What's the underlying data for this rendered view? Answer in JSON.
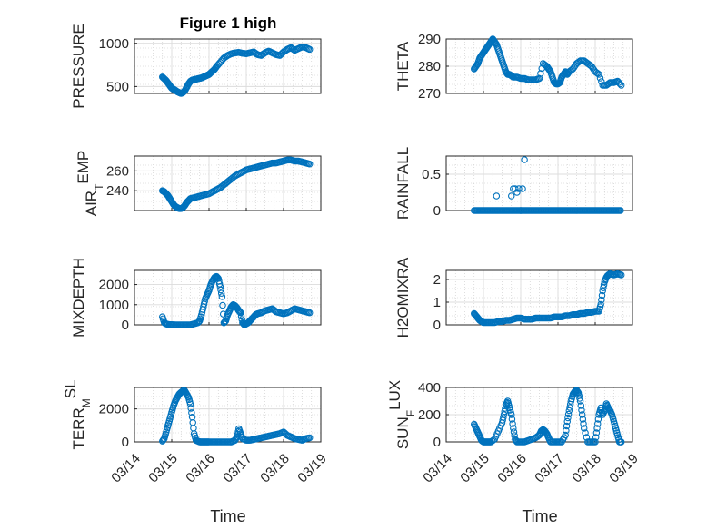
{
  "figure": {
    "title": "Figure 1 high",
    "marker_color": "#0072bd",
    "axis_color": "#262626",
    "grid_color": "#c8c8c8"
  },
  "chart_data": [
    {
      "type": "scatter",
      "id": "pressure",
      "ylabel": "PRESSURE",
      "ylabel_sub": "",
      "ylim": [
        420,
        1050
      ],
      "yticks": [
        500,
        1000
      ],
      "xlim": [
        0,
        5
      ],
      "xticks": [
        0,
        1,
        2,
        3,
        4,
        5
      ],
      "grid": true,
      "points_x": [
        0.75,
        0.8,
        0.85,
        0.9,
        0.95,
        1.0,
        1.05,
        1.1,
        1.15,
        1.2,
        1.25,
        1.3,
        1.35,
        1.4,
        1.45,
        1.5,
        1.55,
        1.6,
        1.65,
        1.7,
        1.75,
        1.8,
        1.85,
        1.9,
        1.95,
        2.0,
        2.05,
        2.1,
        2.15,
        2.2,
        2.3,
        2.4,
        2.5,
        2.6,
        2.7,
        2.8,
        2.9,
        3.0,
        3.1,
        3.2,
        3.3,
        3.4,
        3.5,
        3.6,
        3.7,
        3.8,
        3.9,
        4.0,
        4.1,
        4.2,
        4.3,
        4.4,
        4.5,
        4.6,
        4.7
      ],
      "points_y": [
        610,
        590,
        570,
        540,
        510,
        480,
        470,
        455,
        440,
        430,
        420,
        430,
        450,
        490,
        530,
        560,
        575,
        580,
        585,
        590,
        595,
        600,
        610,
        620,
        630,
        640,
        660,
        680,
        700,
        730,
        780,
        830,
        860,
        880,
        890,
        895,
        885,
        880,
        890,
        900,
        870,
        860,
        890,
        910,
        890,
        870,
        860,
        900,
        930,
        950,
        920,
        940,
        960,
        950,
        930
      ]
    },
    {
      "type": "scatter",
      "id": "theta",
      "ylabel": "THETA",
      "ylabel_sub": "",
      "ylim": [
        270,
        290
      ],
      "yticks": [
        270,
        280,
        290
      ],
      "xlim": [
        0,
        5
      ],
      "xticks": [
        0,
        1,
        2,
        3,
        4,
        5
      ],
      "grid": true,
      "points_x": [
        0.75,
        0.8,
        0.85,
        0.9,
        0.95,
        1.0,
        1.05,
        1.1,
        1.15,
        1.2,
        1.25,
        1.3,
        1.35,
        1.4,
        1.45,
        1.5,
        1.55,
        1.6,
        1.65,
        1.7,
        1.75,
        1.8,
        1.9,
        2.0,
        2.1,
        2.2,
        2.3,
        2.4,
        2.5,
        2.6,
        2.7,
        2.75,
        2.8,
        2.85,
        2.9,
        2.95,
        3.0,
        3.05,
        3.1,
        3.15,
        3.2,
        3.25,
        3.3,
        3.4,
        3.5,
        3.6,
        3.7,
        3.8,
        3.9,
        4.0,
        4.1,
        4.2,
        4.3,
        4.4,
        4.5,
        4.6,
        4.7
      ],
      "points_y": [
        279,
        280,
        281,
        283,
        284,
        285,
        286,
        287,
        288,
        289,
        290,
        289,
        288,
        286,
        284,
        282,
        280,
        278,
        277,
        277,
        276.5,
        276,
        276,
        275.5,
        275.5,
        275,
        275,
        275,
        275.5,
        281,
        280,
        279,
        278,
        276,
        274,
        273.5,
        273.5,
        274,
        276,
        277,
        278,
        277,
        278,
        279,
        281,
        282,
        282,
        281,
        280,
        278,
        277,
        273,
        273,
        274,
        274,
        274.5,
        273
      ]
    },
    {
      "type": "scatter",
      "id": "air_temp",
      "ylabel": "AIR",
      "ylabel_sub": "T",
      "ylabel_tail": "EMP",
      "ylim": [
        220,
        275
      ],
      "yticks": [
        240,
        260
      ],
      "xlim": [
        0,
        5
      ],
      "xticks": [
        0,
        1,
        2,
        3,
        4,
        5
      ],
      "grid": true,
      "points_x": [
        0.75,
        0.8,
        0.85,
        0.9,
        0.95,
        1.0,
        1.05,
        1.1,
        1.15,
        1.2,
        1.25,
        1.3,
        1.35,
        1.4,
        1.45,
        1.5,
        1.6,
        1.7,
        1.8,
        1.9,
        2.0,
        2.1,
        2.2,
        2.3,
        2.4,
        2.5,
        2.6,
        2.7,
        2.8,
        2.9,
        3.0,
        3.1,
        3.2,
        3.3,
        3.4,
        3.5,
        3.6,
        3.7,
        3.8,
        3.9,
        4.0,
        4.1,
        4.2,
        4.3,
        4.4,
        4.5,
        4.6,
        4.7
      ],
      "points_y": [
        240,
        239,
        237,
        235,
        232,
        229,
        226,
        224,
        223,
        222,
        222,
        223,
        225,
        228,
        230,
        232,
        233,
        234,
        235,
        236,
        237,
        239,
        241,
        243,
        246,
        249,
        252,
        255,
        257,
        259,
        261,
        262,
        263,
        264,
        265,
        266,
        267,
        268,
        268,
        269,
        270,
        271,
        271,
        270,
        270,
        269,
        268,
        267
      ]
    },
    {
      "type": "scatter",
      "id": "rainfall",
      "ylabel": "RAINFALL",
      "ylabel_sub": "",
      "ylim": [
        0,
        0.75
      ],
      "yticks": [
        0,
        0.5
      ],
      "xlim": [
        0,
        5
      ],
      "xticks": [
        0,
        1,
        2,
        3,
        4,
        5
      ],
      "grid": true,
      "points_x": [
        1.35,
        1.75,
        1.8,
        1.85,
        1.9,
        1.95,
        2.05,
        2.1,
        2.0
      ],
      "points_y": [
        0.2,
        0.2,
        0.3,
        0.3,
        0.25,
        0.3,
        0.3,
        0.7,
        0.0
      ],
      "baseline_from": 0.75,
      "baseline_to": 4.7,
      "baseline_value": 0
    },
    {
      "type": "scatter",
      "id": "mixdepth",
      "ylabel": "MIXDEPTH",
      "ylabel_sub": "",
      "ylim": [
        0,
        2700
      ],
      "yticks": [
        0,
        1000,
        2000
      ],
      "xlim": [
        0,
        5
      ],
      "xticks": [
        0,
        1,
        2,
        3,
        4,
        5
      ],
      "grid": true,
      "points_x": [
        0.75,
        0.8,
        0.85,
        0.9,
        1.0,
        1.1,
        1.2,
        1.3,
        1.4,
        1.5,
        1.6,
        1.7,
        1.75,
        1.8,
        1.85,
        1.9,
        1.95,
        2.0,
        2.05,
        2.1,
        2.15,
        2.2,
        2.25,
        2.3,
        2.35,
        2.4,
        2.45,
        2.5,
        2.55,
        2.6,
        2.65,
        2.7,
        2.75,
        2.8,
        2.85,
        2.9,
        2.95,
        3.0,
        3.05,
        3.1,
        3.15,
        3.2,
        3.25,
        3.3,
        3.4,
        3.5,
        3.6,
        3.7,
        3.8,
        3.9,
        4.0,
        4.1,
        4.2,
        4.3,
        4.4,
        4.5,
        4.6,
        4.7
      ],
      "points_y": [
        400,
        100,
        50,
        20,
        10,
        0,
        0,
        0,
        0,
        0,
        50,
        100,
        200,
        500,
        900,
        1300,
        1500,
        1700,
        2000,
        2200,
        2350,
        2400,
        2300,
        1900,
        1400,
        100,
        200,
        500,
        700,
        900,
        1000,
        950,
        850,
        700,
        600,
        100,
        0,
        50,
        100,
        200,
        300,
        400,
        500,
        550,
        600,
        700,
        750,
        800,
        650,
        600,
        550,
        600,
        700,
        800,
        750,
        700,
        650,
        600
      ]
    },
    {
      "type": "scatter",
      "id": "h2omixra",
      "ylabel": "H2OMIXRA",
      "ylabel_sub": "",
      "ylim": [
        0,
        2.4
      ],
      "yticks": [
        0,
        1,
        2
      ],
      "xlim": [
        0,
        5
      ],
      "xticks": [
        0,
        1,
        2,
        3,
        4,
        5
      ],
      "grid": true,
      "points_x": [
        0.75,
        0.8,
        0.85,
        0.9,
        0.95,
        1.0,
        1.1,
        1.2,
        1.3,
        1.4,
        1.5,
        1.6,
        1.7,
        1.8,
        1.9,
        2.0,
        2.1,
        2.2,
        2.3,
        2.4,
        2.5,
        2.6,
        2.7,
        2.8,
        2.9,
        3.0,
        3.1,
        3.2,
        3.3,
        3.4,
        3.5,
        3.6,
        3.7,
        3.8,
        3.9,
        4.0,
        4.1,
        4.15,
        4.2,
        4.25,
        4.3,
        4.35,
        4.4,
        4.5,
        4.6,
        4.7
      ],
      "points_y": [
        0.5,
        0.4,
        0.3,
        0.2,
        0.15,
        0.1,
        0.1,
        0.1,
        0.1,
        0.15,
        0.15,
        0.2,
        0.2,
        0.25,
        0.3,
        0.3,
        0.25,
        0.25,
        0.25,
        0.3,
        0.3,
        0.3,
        0.3,
        0.3,
        0.35,
        0.35,
        0.35,
        0.4,
        0.4,
        0.45,
        0.45,
        0.5,
        0.5,
        0.55,
        0.55,
        0.6,
        0.6,
        0.9,
        1.5,
        1.9,
        2.1,
        2.2,
        2.25,
        2.2,
        2.25,
        2.2
      ]
    },
    {
      "type": "scatter",
      "id": "terr_msl",
      "ylabel": "TERR",
      "ylabel_sub": "M",
      "ylabel_tail": "SL",
      "ylim": [
        0,
        3300
      ],
      "yticks": [
        0,
        2000
      ],
      "xlim": [
        0,
        5
      ],
      "xticks": [
        0,
        1,
        2,
        3,
        4,
        5
      ],
      "grid": true,
      "points_x": [
        0.75,
        0.8,
        0.85,
        0.9,
        0.95,
        1.0,
        1.05,
        1.1,
        1.15,
        1.2,
        1.25,
        1.3,
        1.35,
        1.4,
        1.45,
        1.5,
        1.55,
        1.6,
        1.65,
        1.7,
        1.75,
        1.8,
        1.85,
        1.9,
        1.95,
        2.0,
        2.1,
        2.2,
        2.3,
        2.4,
        2.5,
        2.6,
        2.7,
        2.75,
        2.8,
        2.85,
        2.9,
        3.0,
        3.1,
        3.2,
        3.3,
        3.4,
        3.5,
        3.6,
        3.7,
        3.8,
        3.9,
        4.0,
        4.1,
        4.2,
        4.3,
        4.4,
        4.5,
        4.6,
        4.7
      ],
      "points_y": [
        50,
        200,
        600,
        1000,
        1400,
        1800,
        2200,
        2500,
        2700,
        2900,
        3000,
        3100,
        3100,
        2900,
        2700,
        2300,
        1500,
        500,
        100,
        50,
        0,
        0,
        0,
        0,
        0,
        0,
        0,
        0,
        0,
        0,
        0,
        0,
        100,
        300,
        800,
        500,
        200,
        100,
        100,
        150,
        200,
        250,
        300,
        350,
        400,
        450,
        500,
        600,
        400,
        300,
        200,
        150,
        100,
        200,
        250
      ]
    },
    {
      "type": "scatter",
      "id": "sun_flux",
      "ylabel": "SUN",
      "ylabel_sub": "F",
      "ylabel_tail": "LUX",
      "ylim": [
        0,
        400
      ],
      "yticks": [
        0,
        200,
        400
      ],
      "xlim": [
        0,
        5
      ],
      "xticks": [
        0,
        1,
        2,
        3,
        4,
        5
      ],
      "grid": true,
      "points_x": [
        0.75,
        0.8,
        0.85,
        0.9,
        0.95,
        1.0,
        1.05,
        1.1,
        1.15,
        1.2,
        1.3,
        1.4,
        1.5,
        1.55,
        1.6,
        1.65,
        1.7,
        1.75,
        1.8,
        1.85,
        1.9,
        2.0,
        2.1,
        2.2,
        2.3,
        2.4,
        2.5,
        2.55,
        2.6,
        2.65,
        2.7,
        2.75,
        2.8,
        2.9,
        3.0,
        3.1,
        3.2,
        3.25,
        3.3,
        3.35,
        3.4,
        3.45,
        3.5,
        3.55,
        3.6,
        3.65,
        3.7,
        3.8,
        3.9,
        4.0,
        4.05,
        4.1,
        4.15,
        4.2,
        4.25,
        4.3,
        4.35,
        4.4,
        4.45,
        4.5,
        4.55,
        4.6,
        4.65,
        4.7
      ],
      "points_y": [
        130,
        100,
        70,
        40,
        10,
        0,
        0,
        0,
        0,
        0,
        20,
        80,
        140,
        200,
        270,
        300,
        250,
        200,
        100,
        20,
        0,
        0,
        0,
        10,
        20,
        30,
        50,
        80,
        90,
        80,
        60,
        30,
        0,
        0,
        0,
        0,
        50,
        150,
        230,
        300,
        350,
        370,
        380,
        360,
        300,
        200,
        100,
        0,
        0,
        0,
        100,
        200,
        250,
        200,
        230,
        280,
        250,
        230,
        200,
        150,
        100,
        50,
        0,
        0
      ]
    }
  ],
  "x_tick_labels": [
    "03/14",
    "03/15",
    "03/16",
    "03/17",
    "03/18",
    "03/19"
  ],
  "xlabel": "Time"
}
